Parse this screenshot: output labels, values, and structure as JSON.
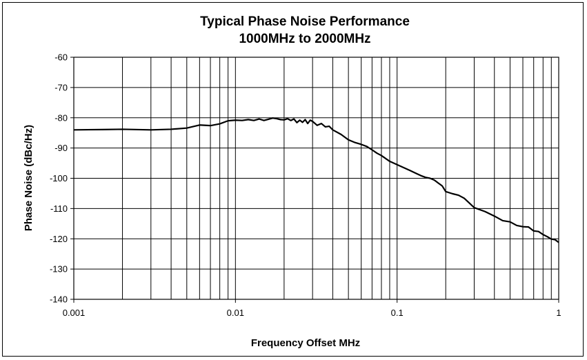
{
  "chart_data": {
    "type": "line",
    "title": "Typical Phase Noise Performance",
    "subtitle": "1000MHz to 2000MHz",
    "xlabel": "Frequency Offset MHz",
    "ylabel": "Phase Noise (dBc/Hz)",
    "x_scale": "log",
    "xlim": [
      0.001,
      1
    ],
    "ylim": [
      -140,
      -60
    ],
    "grid": true,
    "legend": "none",
    "x_ticks": [
      {
        "value": 0.001,
        "label": "0.001"
      },
      {
        "value": 0.01,
        "label": "0.01"
      },
      {
        "value": 0.1,
        "label": "0.1"
      },
      {
        "value": 1,
        "label": "1"
      }
    ],
    "y_ticks": [
      {
        "value": -60,
        "label": "-60"
      },
      {
        "value": -70,
        "label": "-70"
      },
      {
        "value": -80,
        "label": "-80"
      },
      {
        "value": -90,
        "label": "-90"
      },
      {
        "value": -100,
        "label": "-100"
      },
      {
        "value": -110,
        "label": "-110"
      },
      {
        "value": -120,
        "label": "-120"
      },
      {
        "value": -130,
        "label": "-130"
      },
      {
        "value": -140,
        "label": "-140"
      }
    ],
    "series": [
      {
        "color": "#000000",
        "x": [
          0.001,
          0.0015,
          0.002,
          0.003,
          0.004,
          0.005,
          0.006,
          0.007,
          0.008,
          0.009,
          0.01,
          0.011,
          0.012,
          0.013,
          0.014,
          0.015,
          0.016,
          0.017,
          0.018,
          0.019,
          0.02,
          0.021,
          0.022,
          0.023,
          0.024,
          0.025,
          0.026,
          0.027,
          0.028,
          0.029,
          0.03,
          0.032,
          0.034,
          0.036,
          0.038,
          0.04,
          0.045,
          0.05,
          0.055,
          0.06,
          0.065,
          0.07,
          0.075,
          0.08,
          0.09,
          0.1,
          0.11,
          0.12,
          0.13,
          0.14,
          0.15,
          0.16,
          0.17,
          0.18,
          0.19,
          0.2,
          0.22,
          0.24,
          0.26,
          0.28,
          0.3,
          0.35,
          0.4,
          0.45,
          0.5,
          0.55,
          0.6,
          0.65,
          0.7,
          0.75,
          0.8,
          0.85,
          0.9,
          0.95,
          1.0
        ],
        "y": [
          -84.0,
          -83.9,
          -83.8,
          -84.0,
          -83.8,
          -83.4,
          -82.4,
          -82.6,
          -82.0,
          -81.0,
          -80.8,
          -80.9,
          -80.6,
          -80.9,
          -80.4,
          -80.9,
          -80.5,
          -80.1,
          -80.3,
          -80.6,
          -80.7,
          -80.3,
          -80.9,
          -80.4,
          -81.6,
          -80.8,
          -81.5,
          -80.6,
          -81.9,
          -80.8,
          -81.2,
          -82.5,
          -81.9,
          -83.0,
          -82.8,
          -84.0,
          -85.5,
          -87.3,
          -88.2,
          -88.8,
          -89.5,
          -90.6,
          -91.7,
          -92.5,
          -94.4,
          -95.5,
          -96.5,
          -97.4,
          -98.3,
          -99.1,
          -99.7,
          -100.0,
          -100.6,
          -101.6,
          -102.5,
          -104.4,
          -105.1,
          -105.6,
          -106.6,
          -108.2,
          -109.7,
          -111.0,
          -112.5,
          -114.0,
          -114.4,
          -115.6,
          -116.0,
          -116.1,
          -117.4,
          -117.6,
          -118.6,
          -119.3,
          -120.1,
          -120.3,
          -121.2
        ]
      }
    ]
  }
}
